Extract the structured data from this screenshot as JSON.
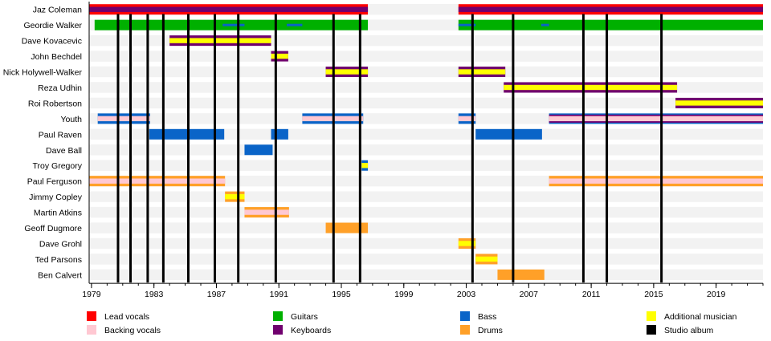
{
  "chart_data": {
    "type": "timeline",
    "title": "",
    "xlabel": "",
    "ylabel": "",
    "xlim": [
      1978.85,
      2022.0
    ],
    "x_ticks": [
      "1979",
      "1983",
      "1987",
      "1991",
      "1995",
      "1999",
      "2003",
      "2007",
      "2011",
      "2015",
      "2019"
    ],
    "x_tick_values": [
      1979,
      1983,
      1987,
      1991,
      1995,
      1999,
      2003,
      2007,
      2011,
      2015,
      2019
    ],
    "minor_tick_step": 1,
    "role_colors": {
      "lead_vocals": "#ff0000",
      "backing_vocals": "#ffc8d2",
      "guitars": "#00b000",
      "keyboards": "#70006e",
      "bass": "#0a64c8",
      "drums": "#ffa028",
      "additional": "#ffff00",
      "studio_album": "#000000"
    },
    "studio_albums": [
      1980.7,
      1981.5,
      1982.6,
      1983.6,
      1985.2,
      1986.9,
      1988.4,
      1990.8,
      1994.5,
      1996.2,
      2003.4,
      2006.0,
      2010.5,
      2012.0,
      2015.5
    ],
    "members": [
      {
        "name": "Jaz Coleman",
        "bars": [
          {
            "start": 1978.85,
            "end": 1996.7,
            "role": "lead_vocals",
            "inner": "keyboards"
          },
          {
            "start": 2002.5,
            "end": 2022.0,
            "role": "lead_vocals",
            "inner": "keyboards"
          }
        ]
      },
      {
        "name": "Geordie Walker",
        "bars": [
          {
            "start": 1979.2,
            "end": 1996.7,
            "role": "guitars"
          },
          {
            "start": 2002.5,
            "end": 2022.0,
            "role": "guitars"
          },
          {
            "start": 1987.4,
            "end": 1988.8,
            "role": "bass_line"
          },
          {
            "start": 1991.5,
            "end": 1992.5,
            "role": "bass_line"
          },
          {
            "start": 2002.5,
            "end": 2003.6,
            "role": "bass_line"
          },
          {
            "start": 2007.8,
            "end": 2008.3,
            "role": "bass_line"
          }
        ]
      },
      {
        "name": "Dave Kovacevic",
        "bars": [
          {
            "start": 1984.0,
            "end": 1990.5,
            "role": "keyboards",
            "inner": "additional"
          }
        ]
      },
      {
        "name": "John Bechdel",
        "bars": [
          {
            "start": 1990.5,
            "end": 1991.6,
            "role": "keyboards",
            "inner": "additional"
          }
        ]
      },
      {
        "name": "Nick Holywell-Walker",
        "bars": [
          {
            "start": 1994.0,
            "end": 1996.7,
            "role": "keyboards",
            "inner": "additional"
          },
          {
            "start": 2002.5,
            "end": 2005.5,
            "role": "keyboards",
            "inner": "additional"
          }
        ]
      },
      {
        "name": "Reza Udhin",
        "bars": [
          {
            "start": 2005.4,
            "end": 2016.5,
            "role": "keyboards",
            "inner": "additional"
          }
        ]
      },
      {
        "name": "Roi Robertson",
        "bars": [
          {
            "start": 2016.4,
            "end": 2022.0,
            "role": "keyboards",
            "inner": "additional"
          }
        ]
      },
      {
        "name": "Youth",
        "bars": [
          {
            "start": 1979.4,
            "end": 1982.75,
            "role": "bass",
            "inner": "backing_vocals"
          },
          {
            "start": 1992.5,
            "end": 1996.4,
            "role": "bass",
            "inner": "backing_vocals"
          },
          {
            "start": 2002.5,
            "end": 2003.6,
            "role": "bass",
            "inner": "backing_vocals"
          },
          {
            "start": 2008.3,
            "end": 2022.0,
            "role": "bass",
            "inner": "backing_vocals",
            "accent": "keyboards"
          }
        ]
      },
      {
        "name": "Paul Raven",
        "bars": [
          {
            "start": 1982.7,
            "end": 1987.5,
            "role": "bass"
          },
          {
            "start": 1990.5,
            "end": 1991.6,
            "role": "bass"
          },
          {
            "start": 2003.6,
            "end": 2007.85,
            "role": "bass"
          }
        ]
      },
      {
        "name": "Dave Ball",
        "bars": [
          {
            "start": 1988.8,
            "end": 1990.6,
            "role": "bass"
          }
        ]
      },
      {
        "name": "Troy Gregory",
        "bars": [
          {
            "start": 1996.3,
            "end": 1996.7,
            "role": "bass",
            "inner": "additional"
          }
        ]
      },
      {
        "name": "Paul Ferguson",
        "bars": [
          {
            "start": 1978.85,
            "end": 1987.55,
            "role": "drums",
            "inner": "backing_vocals"
          },
          {
            "start": 2008.3,
            "end": 2022.0,
            "role": "drums",
            "inner": "backing_vocals"
          }
        ]
      },
      {
        "name": "Jimmy Copley",
        "bars": [
          {
            "start": 1987.55,
            "end": 1988.8,
            "role": "drums",
            "inner": "additional"
          }
        ]
      },
      {
        "name": "Martin Atkins",
        "bars": [
          {
            "start": 1988.8,
            "end": 1991.65,
            "role": "drums",
            "inner": "backing_vocals"
          }
        ]
      },
      {
        "name": "Geoff Dugmore",
        "bars": [
          {
            "start": 1994.0,
            "end": 1996.7,
            "role": "drums"
          }
        ]
      },
      {
        "name": "Dave Grohl",
        "bars": [
          {
            "start": 2002.5,
            "end": 2003.6,
            "role": "drums",
            "inner": "additional"
          }
        ]
      },
      {
        "name": "Ted Parsons",
        "bars": [
          {
            "start": 2003.6,
            "end": 2005.0,
            "role": "drums",
            "inner": "additional"
          }
        ]
      },
      {
        "name": "Ben Calvert",
        "bars": [
          {
            "start": 2005.0,
            "end": 2008.0,
            "role": "drums"
          }
        ]
      }
    ],
    "legend": [
      {
        "label": "Lead vocals",
        "role": "lead_vocals"
      },
      {
        "label": "Backing vocals",
        "role": "backing_vocals"
      },
      {
        "label": "Guitars",
        "role": "guitars"
      },
      {
        "label": "Keyboards",
        "role": "keyboards"
      },
      {
        "label": "Bass",
        "role": "bass"
      },
      {
        "label": "Drums",
        "role": "drums"
      },
      {
        "label": "Additional musician",
        "role": "additional"
      },
      {
        "label": "Studio album",
        "role": "studio_album"
      }
    ],
    "legend_placement": "bottom"
  }
}
